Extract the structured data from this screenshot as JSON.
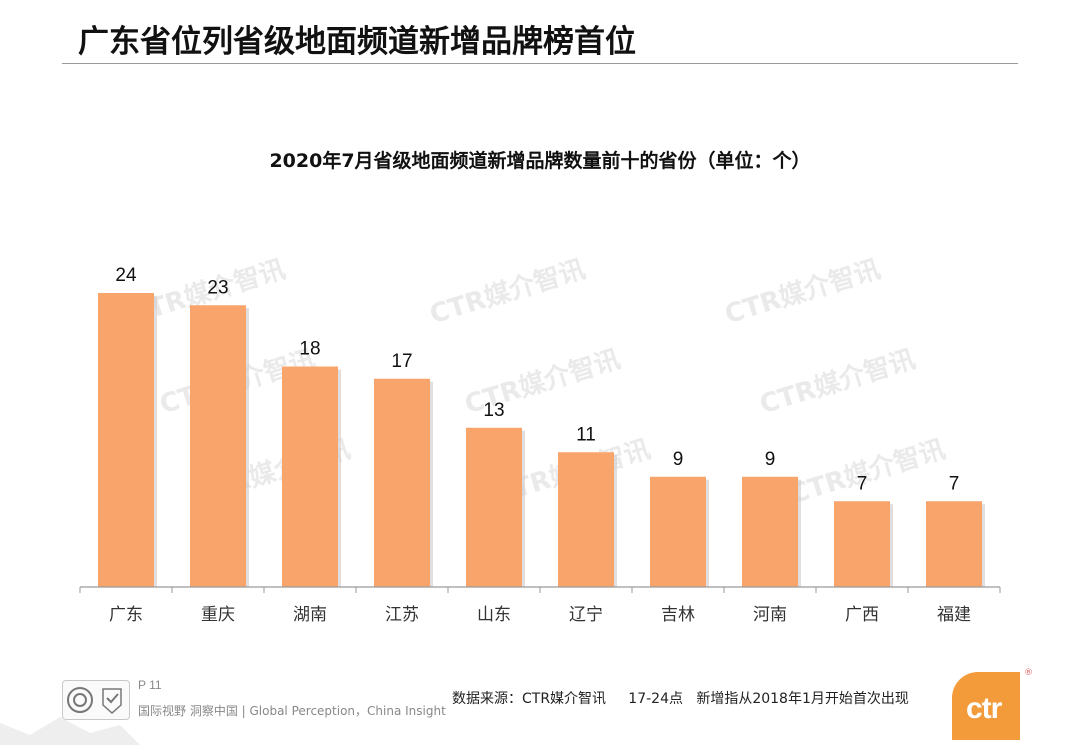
{
  "slide": {
    "title": "广东省位列省级地面频道新增品牌榜首位"
  },
  "chart_data": {
    "type": "bar",
    "title": "2020年7月省级地面频道新增品牌数量前十的省份（单位：个）",
    "categories": [
      "广东",
      "重庆",
      "湖南",
      "江苏",
      "山东",
      "辽宁",
      "吉林",
      "河南",
      "广西",
      "福建"
    ],
    "values": [
      24,
      23,
      18,
      17,
      13,
      11,
      9,
      9,
      7,
      7
    ],
    "ylim": [
      0,
      24
    ],
    "grid": false,
    "legend": "none",
    "data_labels": true,
    "bar_color": "#f9a46a"
  },
  "watermark": {
    "text": "CTR媒介智讯"
  },
  "footer": {
    "page_number": "P 11",
    "slogan": "国际视野 洞察中国 |  Global Perception，China Insight",
    "source_note": "数据来源：CTR媒介智讯     17-24点   新增指从2018年1月开始首次出现",
    "logo_text": "ctr",
    "logo_color": "#f39a3b"
  }
}
